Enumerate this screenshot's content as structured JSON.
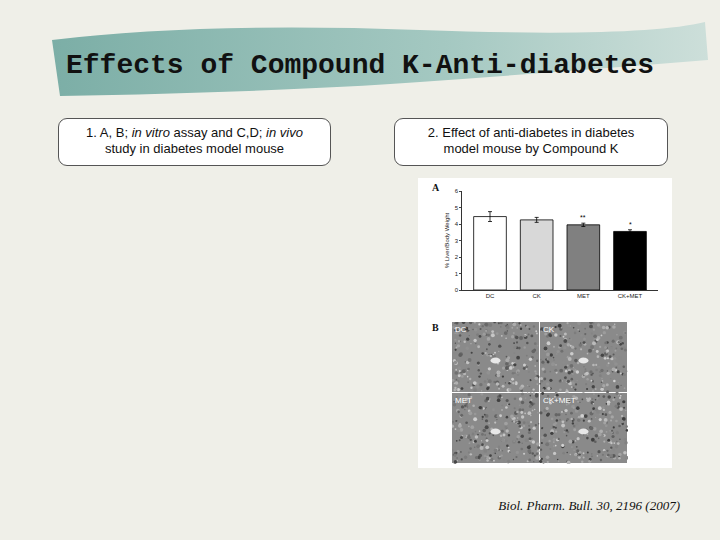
{
  "title": "Effects of Compound K-Anti-diabetes",
  "boxes": [
    {
      "lines": [
        [
          {
            "text": "1. A, B; "
          },
          {
            "text": "in vitro",
            "italic": true
          },
          {
            "text": " assay and C,D; "
          },
          {
            "text": "in vivo",
            "italic": true
          }
        ],
        [
          {
            "text": "study in diabetes model mouse"
          }
        ]
      ]
    },
    {
      "lines": [
        [
          {
            "text": "2. Effect of anti-diabetes in diabetes"
          }
        ],
        [
          {
            "text": "model mouse by Compound K"
          }
        ]
      ]
    }
  ],
  "panel_labels": [
    "A",
    "B"
  ],
  "histology_labels": [
    "DC",
    "CK",
    "MET",
    "CK+MET"
  ],
  "citation": "Biol. Pharm. Bull. 30, 2196 (2007)",
  "chart_data": {
    "type": "bar",
    "categories": [
      "DC",
      "CK",
      "MET",
      "CK+MET"
    ],
    "values": [
      4.45,
      4.25,
      3.95,
      3.55
    ],
    "error": [
      0.3,
      0.15,
      0.1,
      0.1
    ],
    "significance": [
      null,
      null,
      "**",
      "*"
    ],
    "colors": [
      "#ffffff",
      "#d8d8d8",
      "#808080",
      "#000000"
    ],
    "y_label": "% Liver/Body Weight",
    "ylim": [
      0,
      6
    ],
    "yticks": [
      0,
      1,
      2,
      3,
      4,
      5,
      6
    ]
  }
}
